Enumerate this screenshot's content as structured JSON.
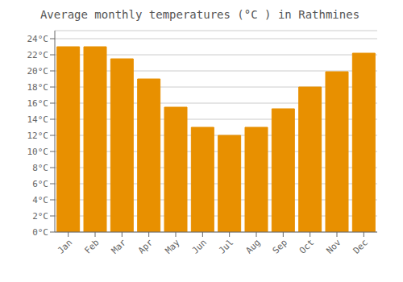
{
  "chart_data": {
    "type": "bar",
    "title": "Average monthly temperatures (°C ) in Rathmines",
    "categories": [
      "Jan",
      "Feb",
      "Mar",
      "Apr",
      "May",
      "Jun",
      "Jul",
      "Aug",
      "Sep",
      "Oct",
      "Nov",
      "Dec"
    ],
    "values": [
      23,
      23,
      21.5,
      19,
      15.5,
      13,
      12,
      13,
      15.3,
      18,
      19.9,
      22.2
    ],
    "color": "#E89000",
    "ylim": [
      0,
      25
    ],
    "yticks": [
      {
        "value": 0,
        "label": "0°C"
      },
      {
        "value": 2,
        "label": "2°C"
      },
      {
        "value": 4,
        "label": "4°C"
      },
      {
        "value": 6,
        "label": "6°C"
      },
      {
        "value": 8,
        "label": "8°C"
      },
      {
        "value": 10,
        "label": "10°C"
      },
      {
        "value": 12,
        "label": "12°C"
      },
      {
        "value": 14,
        "label": "14°C"
      },
      {
        "value": 16,
        "label": "16°C"
      },
      {
        "value": 18,
        "label": "18°C"
      },
      {
        "value": 20,
        "label": "20°C"
      },
      {
        "value": 22,
        "label": "22°C"
      },
      {
        "value": 24,
        "label": "24°C"
      }
    ],
    "grid": true
  }
}
